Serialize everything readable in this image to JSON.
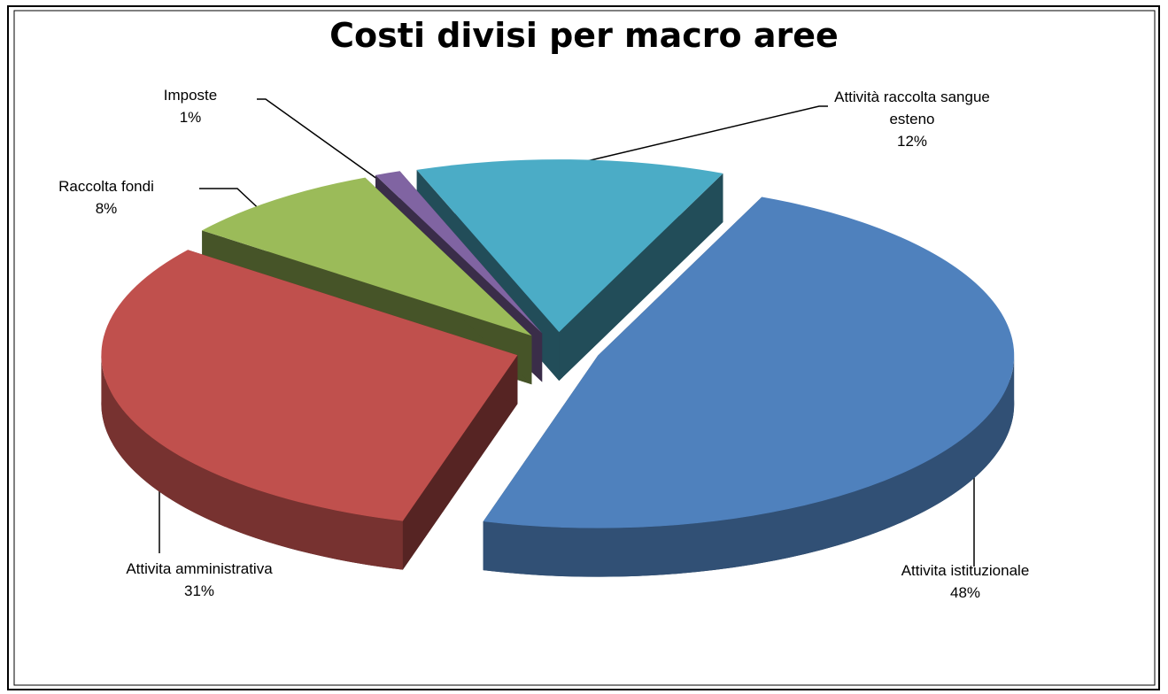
{
  "chart_data": {
    "type": "pie",
    "title": "Costi divisi per macro aree",
    "categories": [
      "Attività raccolta sangue esteno",
      "Attivita istituzionale",
      "Attivita amministrativa",
      "Raccolta fondi",
      "Imposte"
    ],
    "values": [
      12,
      48,
      31,
      8,
      1
    ],
    "value_labels": [
      "12%",
      "48%",
      "31%",
      "8%",
      "1%"
    ],
    "colors": [
      "#4bacc6",
      "#4f81bd",
      "#c0504d",
      "#9bbb59",
      "#8064a2"
    ]
  }
}
